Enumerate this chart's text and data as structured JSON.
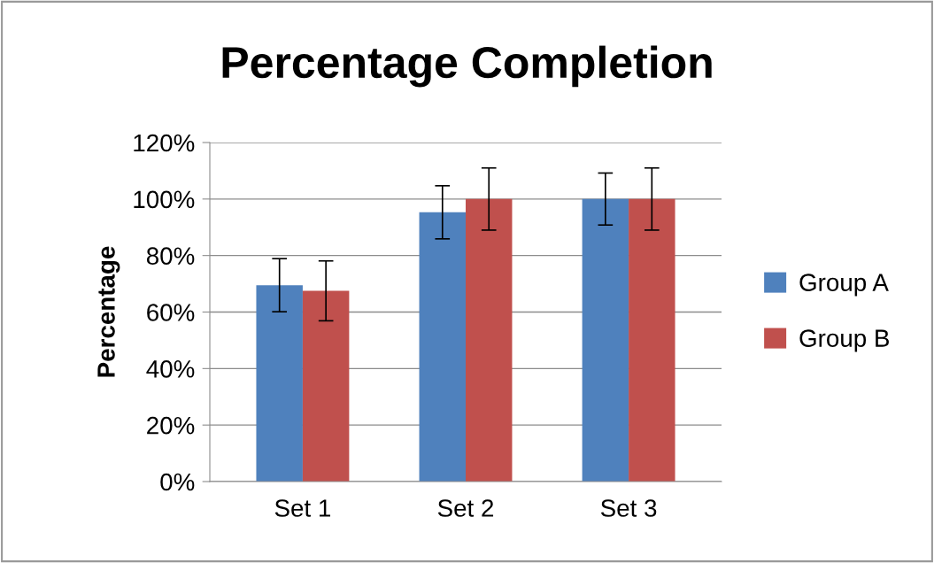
{
  "chart_data": {
    "type": "bar",
    "title": "Percentage Completion",
    "ylabel": "Percentage",
    "categories": [
      "Set 1",
      "Set 2",
      "Set 3"
    ],
    "series": [
      {
        "name": "Group A",
        "color": "#4f81bd",
        "values": [
          69.5,
          95.3,
          100
        ],
        "errors": [
          9.4,
          9.4,
          9.2
        ]
      },
      {
        "name": "Group B",
        "color": "#c0504d",
        "values": [
          67.5,
          100,
          100
        ],
        "errors": [
          10.6,
          11,
          11
        ]
      }
    ],
    "ylim": [
      0,
      120
    ],
    "yticks": [
      {
        "value": 0,
        "label": "0%"
      },
      {
        "value": 20,
        "label": "20%"
      },
      {
        "value": 40,
        "label": "40%"
      },
      {
        "value": 60,
        "label": "60%"
      },
      {
        "value": 80,
        "label": "80%"
      },
      {
        "value": 100,
        "label": "100%"
      },
      {
        "value": 120,
        "label": "120%"
      }
    ],
    "grid": "y",
    "legend": "right"
  }
}
